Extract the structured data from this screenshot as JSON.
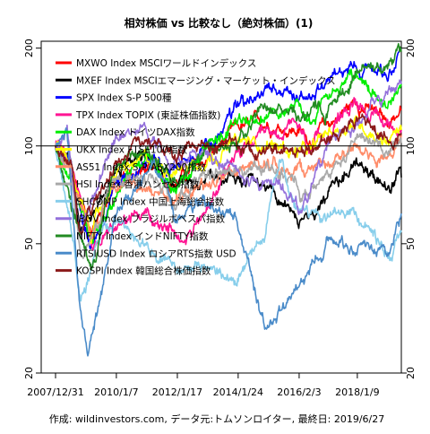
{
  "chart_data": {
    "type": "line",
    "title": "相対株価 vs 比較なし（絶対株価）(1)",
    "caption": "作成: wildinvestors.com, データ元:トムソンロイター, 最終日: 2019/6/27",
    "x_range": [
      "2007-12-31",
      "2019-06-27"
    ],
    "x_ticks": [
      "2007/12/31",
      "2010/1/7",
      "2012/1/17",
      "2014/1/24",
      "2016/2/3",
      "2018/1/9"
    ],
    "y_scale": "log",
    "y_range": [
      20,
      210
    ],
    "y_ticks": [
      "200",
      "100",
      "50",
      "20"
    ],
    "reference_line": 100,
    "legend_position": "top-left",
    "series": [
      {
        "name": "MXWO Index MSCIワールドインデックス",
        "color": "#ff0000",
        "x": [
          "2007-12-31",
          "2008-06-30",
          "2009-03-09",
          "2009-12-31",
          "2010-12-31",
          "2011-12-31",
          "2012-12-31",
          "2013-12-31",
          "2014-12-31",
          "2015-12-31",
          "2016-06-30",
          "2016-12-31",
          "2017-12-31",
          "2018-12-31",
          "2019-06-27"
        ],
        "values": [
          100,
          85,
          55,
          78,
          85,
          78,
          90,
          112,
          118,
          112,
          105,
          115,
          138,
          118,
          130
        ]
      },
      {
        "name": "MXEF Index MSCIエマージング・マーケット・インデックス",
        "color": "#000000",
        "x": [
          "2007-12-31",
          "2008-06-30",
          "2008-10-27",
          "2009-12-31",
          "2010-12-31",
          "2011-12-31",
          "2012-12-31",
          "2013-12-31",
          "2014-12-31",
          "2015-12-31",
          "2016-01-21",
          "2016-12-31",
          "2017-12-31",
          "2018-12-31",
          "2019-06-27"
        ],
        "values": [
          100,
          88,
          50,
          85,
          93,
          75,
          82,
          78,
          76,
          60,
          58,
          68,
          88,
          74,
          80
        ]
      },
      {
        "name": "SPX Index S-P 500種",
        "color": "#0000ff",
        "x": [
          "2007-12-31",
          "2008-06-30",
          "2009-03-09",
          "2009-12-31",
          "2010-12-31",
          "2011-12-31",
          "2012-12-31",
          "2013-12-31",
          "2014-12-31",
          "2015-12-31",
          "2016-06-30",
          "2016-12-31",
          "2017-12-31",
          "2018-12-31",
          "2019-06-27"
        ],
        "values": [
          100,
          87,
          48,
          76,
          86,
          86,
          96,
          128,
          145,
          143,
          145,
          155,
          180,
          170,
          200
        ]
      },
      {
        "name": "TPX Index TOPIX (東証株価指数)",
        "color": "#ff1493",
        "x": [
          "2007-12-31",
          "2008-06-30",
          "2009-03-09",
          "2009-12-31",
          "2010-12-31",
          "2011-12-31",
          "2012-12-31",
          "2013-12-31",
          "2014-12-31",
          "2015-12-31",
          "2016-06-30",
          "2016-12-31",
          "2017-12-31",
          "2018-12-31",
          "2019-06-27"
        ],
        "values": [
          100,
          90,
          50,
          60,
          62,
          52,
          62,
          95,
          105,
          115,
          95,
          110,
          140,
          115,
          112
        ]
      },
      {
        "name": "DAX Index ドイツDAX指数",
        "color": "#00ee00",
        "x": [
          "2007-12-31",
          "2008-06-30",
          "2009-03-09",
          "2009-12-31",
          "2010-12-31",
          "2011-12-31",
          "2012-12-31",
          "2013-12-31",
          "2014-12-31",
          "2015-12-31",
          "2016-06-30",
          "2016-12-31",
          "2017-12-31",
          "2018-12-31",
          "2019-06-27"
        ],
        "values": [
          100,
          82,
          50,
          75,
          90,
          75,
          95,
          120,
          125,
          135,
          120,
          145,
          160,
          135,
          155
        ]
      },
      {
        "name": "UKX Index FTSE100指数",
        "color": "#ffff00",
        "x": [
          "2007-12-31",
          "2008-06-30",
          "2009-03-09",
          "2009-12-31",
          "2010-12-31",
          "2011-12-31",
          "2012-12-31",
          "2013-12-31",
          "2014-12-31",
          "2015-12-31",
          "2016-06-30",
          "2016-12-31",
          "2017-12-31",
          "2018-12-31",
          "2019-06-27"
        ],
        "values": [
          100,
          88,
          55,
          82,
          90,
          85,
          92,
          102,
          102,
          96,
          95,
          110,
          118,
          105,
          112
        ]
      },
      {
        "name": "AS51 Index S-P/ASX200指数",
        "color": "#ff8c69",
        "x": [
          "2007-12-31",
          "2008-06-30",
          "2009-03-09",
          "2009-12-31",
          "2010-12-31",
          "2011-12-31",
          "2012-12-31",
          "2013-12-31",
          "2014-12-31",
          "2015-12-31",
          "2016-06-30",
          "2016-12-31",
          "2017-12-31",
          "2018-12-31",
          "2019-06-27"
        ],
        "values": [
          100,
          82,
          52,
          75,
          75,
          68,
          75,
          85,
          87,
          85,
          83,
          90,
          98,
          92,
          108
        ]
      },
      {
        "name": "HSI Index 香港ハンセン指数",
        "color": "#a9a9a9",
        "x": [
          "2007-12-31",
          "2008-06-30",
          "2008-10-27",
          "2009-12-31",
          "2010-12-31",
          "2011-12-31",
          "2012-12-31",
          "2013-12-31",
          "2014-12-31",
          "2015-12-31",
          "2016-02-12",
          "2016-12-31",
          "2017-12-31",
          "2018-12-31",
          "2019-06-27"
        ],
        "values": [
          100,
          80,
          45,
          78,
          82,
          68,
          80,
          83,
          85,
          78,
          68,
          80,
          110,
          93,
          102
        ]
      },
      {
        "name": "SHCOMP Index 中国上海総合指数",
        "color": "#87ceeb",
        "x": [
          "2007-12-31",
          "2008-06-30",
          "2008-10-31",
          "2009-08-03",
          "2009-12-31",
          "2010-12-31",
          "2011-12-31",
          "2012-12-31",
          "2013-12-31",
          "2014-12-31",
          "2015-06-12",
          "2015-12-31",
          "2016-12-31",
          "2017-12-31",
          "2018-12-31",
          "2019-06-27"
        ],
        "values": [
          100,
          55,
          32,
          60,
          58,
          50,
          42,
          42,
          40,
          58,
          95,
          65,
          60,
          62,
          46,
          55
        ]
      },
      {
        "name": "IBOV Index ブラジルボベスパ指数",
        "color": "#9370db",
        "x": [
          "2007-12-31",
          "2008-05-20",
          "2008-10-27",
          "2009-12-31",
          "2010-12-31",
          "2011-12-31",
          "2012-12-31",
          "2013-12-31",
          "2014-12-31",
          "2015-12-31",
          "2016-01-26",
          "2016-12-31",
          "2017-12-31",
          "2018-12-31",
          "2019-06-27"
        ],
        "values": [
          100,
          115,
          50,
          108,
          108,
          90,
          95,
          82,
          78,
          68,
          63,
          95,
          120,
          140,
          155
        ]
      },
      {
        "name": "NIFTY Index インドNIFTY指数",
        "color": "#228b22",
        "x": [
          "2007-12-31",
          "2008-06-30",
          "2009-03-09",
          "2009-12-31",
          "2010-12-31",
          "2011-12-31",
          "2012-12-31",
          "2013-12-31",
          "2014-12-31",
          "2015-12-31",
          "2016-06-30",
          "2016-12-31",
          "2017-12-31",
          "2018-12-31",
          "2019-06-27"
        ],
        "values": [
          100,
          68,
          42,
          85,
          98,
          75,
          95,
          100,
          135,
          125,
          125,
          130,
          170,
          175,
          195
        ]
      },
      {
        "name": "RTSIUSD Index ロシアRTS指数 USD",
        "color": "#4a8bc9",
        "x": [
          "2007-12-31",
          "2008-05-19",
          "2008-10-24",
          "2009-01-23",
          "2009-12-31",
          "2010-12-31",
          "2011-04-08",
          "2011-12-31",
          "2012-12-31",
          "2013-12-31",
          "2014-12-16",
          "2015-12-31",
          "2016-12-31",
          "2017-12-31",
          "2018-12-31",
          "2019-06-27"
        ],
        "values": [
          100,
          110,
          30,
          22,
          62,
          80,
          90,
          60,
          65,
          58,
          28,
          35,
          52,
          50,
          48,
          62
        ]
      },
      {
        "name": "KOSPI Index 韓国総合株価指数",
        "color": "#8b1a1a",
        "x": [
          "2007-12-31",
          "2008-06-30",
          "2008-10-24",
          "2009-12-31",
          "2010-12-31",
          "2011-12-31",
          "2012-12-31",
          "2013-12-31",
          "2014-12-31",
          "2015-12-31",
          "2016-06-30",
          "2016-12-31",
          "2017-12-31",
          "2018-12-31",
          "2019-06-27"
        ],
        "values": [
          100,
          90,
          56,
          88,
          105,
          95,
          100,
          98,
          96,
          96,
          98,
          103,
          125,
          105,
          108
        ]
      }
    ]
  }
}
